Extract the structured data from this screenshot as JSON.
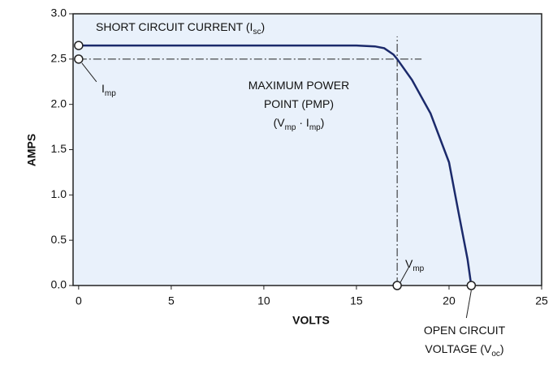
{
  "chart_data": {
    "type": "line",
    "xlabel": "VOLTS",
    "ylabel": "AMPS",
    "xlim": [
      -0.3,
      25
    ],
    "ylim": [
      0,
      3
    ],
    "xticks": [
      0,
      5,
      10,
      15,
      20,
      25
    ],
    "yticks": [
      {
        "value": 0,
        "label": "0.0"
      },
      {
        "value": 0.5,
        "label": "0.5"
      },
      {
        "value": 1,
        "label": "1.0"
      },
      {
        "value": 1.5,
        "label": "1.5"
      },
      {
        "value": 2,
        "label": "2.0"
      },
      {
        "value": 2.5,
        "label": "2.5"
      },
      {
        "value": 3,
        "label": "3.0"
      }
    ],
    "color": "#1b2a6b",
    "background": "#e9f1fb",
    "x": [
      0,
      2,
      4,
      6,
      8,
      10,
      12,
      14,
      15,
      16,
      16.5,
      17,
      17.2,
      18,
      19,
      20,
      20.5,
      21,
      21.2
    ],
    "values": [
      2.65,
      2.65,
      2.65,
      2.65,
      2.65,
      2.65,
      2.65,
      2.65,
      2.65,
      2.64,
      2.62,
      2.55,
      2.5,
      2.27,
      1.9,
      1.36,
      0.82,
      0.29,
      0
    ],
    "annotations": [
      {
        "x": 0,
        "y": 2.65,
        "marker": true,
        "lines": [
          [
            {
              "text": "SHORT CIRCUIT CURRENT (I",
              "sub": false
            },
            {
              "text": "sc",
              "sub": true
            },
            {
              "text": ")",
              "sub": false
            }
          ]
        ]
      },
      {
        "x": 0,
        "y": 2.5,
        "marker": true,
        "lines": [
          [
            {
              "text": "I",
              "sub": false
            },
            {
              "text": "mp",
              "sub": true
            }
          ]
        ]
      },
      {
        "x": 17.2,
        "y": 2.5,
        "marker": false,
        "lines": [
          [
            {
              "text": "MAXIMUM POWER",
              "sub": false
            }
          ],
          [
            {
              "text": "POINT (PMP)",
              "sub": false
            }
          ],
          [
            {
              "text": "(V",
              "sub": false
            },
            {
              "text": "mp",
              "sub": true
            },
            {
              "text": " · I",
              "sub": false
            },
            {
              "text": "mp",
              "sub": true
            },
            {
              "text": ")",
              "sub": false
            }
          ]
        ]
      },
      {
        "x": 17.2,
        "y": 0,
        "marker": true,
        "lines": [
          [
            {
              "text": "V",
              "sub": false
            },
            {
              "text": "mp",
              "sub": true
            }
          ]
        ]
      },
      {
        "x": 21.2,
        "y": 0,
        "marker": true,
        "lines": [
          [
            {
              "text": "OPEN CIRCUIT",
              "sub": false
            }
          ],
          [
            {
              "text": "VOLTAGE (V",
              "sub": false
            },
            {
              "text": "oc",
              "sub": true
            },
            {
              "text": ")",
              "sub": false
            }
          ]
        ]
      }
    ]
  }
}
